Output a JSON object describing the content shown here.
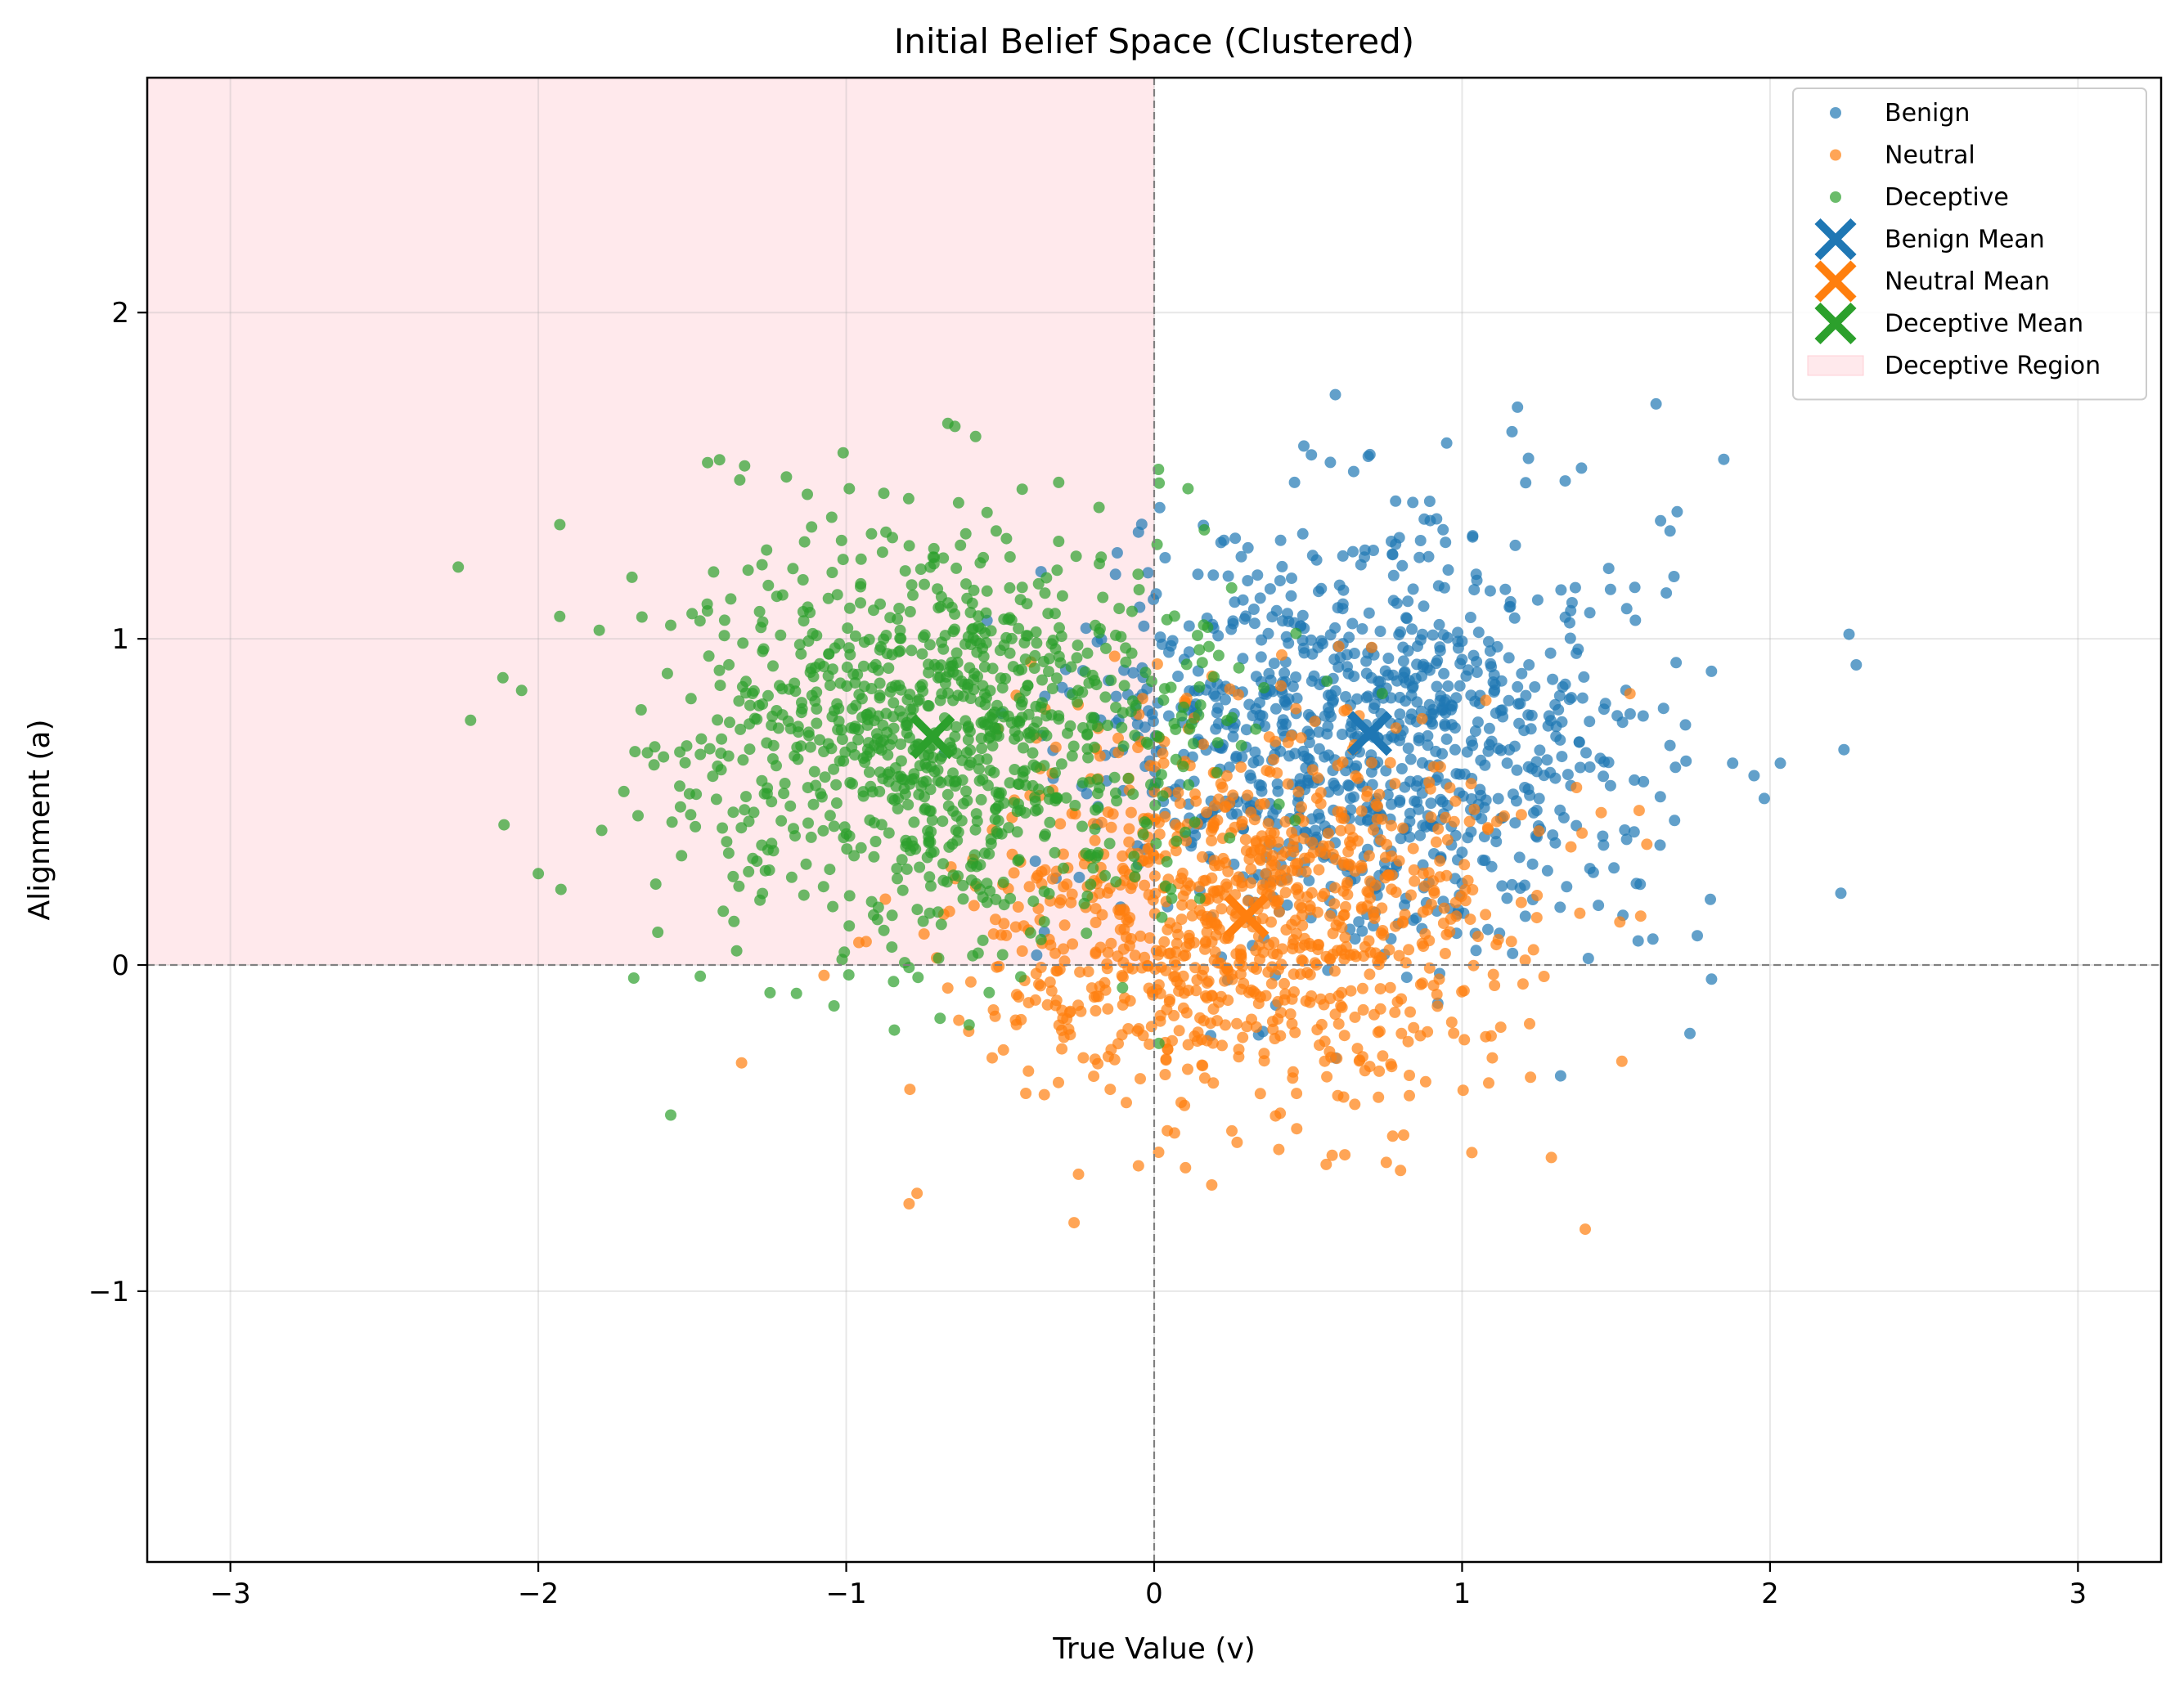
{
  "chart_data": {
    "type": "scatter",
    "title": "Initial Belief Space (Clustered)",
    "xlabel": "True Value (v)",
    "ylabel": "Alignment (a)",
    "xlim": [
      -3.27,
      3.27
    ],
    "ylim": [
      -1.83,
      2.72
    ],
    "xticks": [
      -3,
      -2,
      -1,
      0,
      1,
      2,
      3
    ],
    "yticks": [
      -1,
      0,
      1,
      2
    ],
    "xtick_labels": [
      "−3",
      "−2",
      "−1",
      "0",
      "1",
      "2",
      "3"
    ],
    "ytick_labels": [
      "−1",
      "0",
      "1",
      "2"
    ],
    "grid": true,
    "legend_position": "top-right",
    "reference_lines": {
      "x": 0,
      "y": 0,
      "style": "dashed",
      "color": "#808080"
    },
    "region": {
      "name": "Deceptive Region",
      "x_range": [
        -3.27,
        0
      ],
      "y_range": [
        0,
        2.72
      ],
      "color": "#ffb6c1",
      "opacity": 0.3
    },
    "series": [
      {
        "name": "Benign",
        "kind": "cloud",
        "color": "#1f77b4",
        "count": 1000,
        "mean": [
          0.7,
          0.7
        ],
        "std": [
          0.45,
          0.32
        ],
        "points_drawn": [
          [
            1.63,
            1.72
          ],
          [
            1.18,
            1.71
          ],
          [
            0.95,
            1.6
          ],
          [
            1.85,
            1.55
          ],
          [
            2.28,
            0.92
          ],
          [
            2.24,
            0.66
          ],
          [
            2.23,
            0.22
          ],
          [
            1.74,
            -0.21
          ],
          [
            1.32,
            -0.34
          ],
          [
            1.41,
            0.02
          ]
        ]
      },
      {
        "name": "Neutral",
        "kind": "cloud",
        "color": "#ff7f0e",
        "count": 1000,
        "mean": [
          0.3,
          0.15
        ],
        "std": [
          0.42,
          0.3
        ],
        "points_drawn": [
          [
            1.4,
            -0.81
          ],
          [
            -0.26,
            -0.79
          ],
          [
            -0.77,
            -0.7
          ],
          [
            0.8,
            -0.63
          ],
          [
            1.29,
            -0.59
          ],
          [
            -1.34,
            -0.3
          ],
          [
            1.6,
            0.37
          ],
          [
            1.58,
            0.15
          ]
        ]
      },
      {
        "name": "Deceptive",
        "kind": "cloud",
        "color": "#2ca02c",
        "count": 1000,
        "mean": [
          -0.7,
          0.7
        ],
        "std": [
          0.42,
          0.32
        ],
        "points_drawn": [
          [
            -2.26,
            1.22
          ],
          [
            -0.67,
            1.66
          ],
          [
            -0.58,
            1.62
          ],
          [
            -1.45,
            1.54
          ],
          [
            -1.33,
            1.53
          ],
          [
            -1.01,
            1.57
          ],
          [
            -0.99,
            1.46
          ],
          [
            -1.57,
            -0.46
          ],
          [
            -1.93,
            1.35
          ],
          [
            -2.22,
            0.75
          ],
          [
            -2.0,
            0.28
          ],
          [
            -1.69,
            -0.04
          ],
          [
            0.11,
            1.46
          ]
        ]
      }
    ],
    "means": [
      {
        "name": "Benign Mean",
        "x": 0.7,
        "y": 0.71,
        "color": "#1f77b4",
        "marker": "x"
      },
      {
        "name": "Neutral Mean",
        "x": 0.3,
        "y": 0.15,
        "color": "#ff7f0e",
        "marker": "x"
      },
      {
        "name": "Deceptive Mean",
        "x": -0.72,
        "y": 0.7,
        "color": "#2ca02c",
        "marker": "x"
      }
    ],
    "legend": [
      "Benign",
      "Neutral",
      "Deceptive",
      "Benign Mean",
      "Neutral Mean",
      "Deceptive Mean",
      "Deceptive Region"
    ]
  }
}
